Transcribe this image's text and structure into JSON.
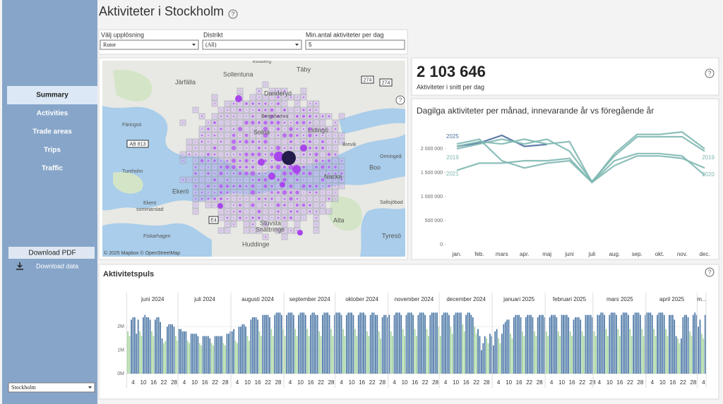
{
  "sidebar": {
    "nav": [
      "Summary",
      "Activities",
      "Trade areas",
      "Trips",
      "Traffic"
    ],
    "download_pdf": "Download PDF",
    "download_data": "Download data",
    "region": "Stockholm"
  },
  "header": {
    "title": "Aktiviteter i Stockholm",
    "help": "?"
  },
  "filters": [
    {
      "label": "Välj upplösning",
      "value": "Rutor"
    },
    {
      "label": "Distrikt",
      "value": "(All)"
    },
    {
      "label": "Min.antal aktiviteter per dag",
      "value": "5"
    }
  ],
  "map": {
    "places": [
      "Edsberg",
      "Sollentuna",
      "Täby",
      "Järfälla",
      "Danderyd",
      "Bergshamra",
      "Solna",
      "Lidingö",
      "Brevik",
      "Färingsö",
      "Ormingeå",
      "Boo",
      "Tureholm",
      "Nacka",
      "Ekerö",
      "Ekerö",
      "sommarstad",
      "Saltsjöbad",
      "Stuvsta",
      "Snättringe",
      "Alta",
      "Tyresö",
      "Fiskarhagen",
      "Huddinge"
    ],
    "roads": [
      "AB 813",
      "E4",
      "274",
      "274"
    ],
    "attribution": "© 2025 Mapbox © OpenStreetMap"
  },
  "kpi": {
    "value": "2 103 646",
    "label": "Aktiviteter i snitt per dag"
  },
  "chart_data": [
    {
      "type": "line",
      "title": "Dagilga aktiviteter per månad, innevarande år vs föregående år",
      "categories": [
        "jan.",
        "feb.",
        "mars",
        "apr.",
        "maj",
        "juni",
        "juli",
        "aug.",
        "sep.",
        "okt.",
        "nov.",
        "dec."
      ],
      "ylim": [
        0,
        2500000
      ],
      "yticks": [
        0,
        {
          "value": 500000,
          "label": "500 000"
        },
        {
          "value": 1000000,
          "label": "1 000 000"
        },
        {
          "value": 1500000,
          "label": "1 500 000"
        },
        {
          "value": 2000000,
          "label": "2 000 000"
        }
      ],
      "series": [
        {
          "name": "2025",
          "color": "#4e6e9e",
          "values": [
            2050000,
            2120000,
            2280000,
            2050000,
            2090000,
            null,
            null,
            null,
            null,
            null,
            null,
            null
          ]
        },
        {
          "name": "2019",
          "color": "#7fb8b2",
          "values": [
            2050000,
            2150000,
            2100000,
            2200000,
            2100000,
            2150000,
            1300000,
            1900000,
            2300000,
            2300000,
            2350000,
            2000000
          ]
        },
        {
          "name": "2020",
          "color": "#7fb8b2",
          "values": [
            2100000,
            2200000,
            1750000,
            1600000,
            1700000,
            1750000,
            1300000,
            1750000,
            1900000,
            1900000,
            1850000,
            1450000
          ]
        },
        {
          "name": "2021",
          "color": "#7fb8b2",
          "values": [
            1550000,
            1700000,
            1700000,
            1750000,
            1750000,
            1800000,
            1300000,
            1650000,
            1850000,
            1850000,
            1800000,
            1600000
          ]
        },
        {
          "color": "#7fb8b2",
          "values": [
            2000000,
            2100000,
            2200000,
            2100000,
            2200000,
            1950000,
            1320000,
            1850000,
            2250000,
            2250000,
            2250000,
            1950000
          ]
        }
      ]
    },
    {
      "type": "bar",
      "title": "Aktivitetspuls",
      "ylim": [
        0,
        2.7
      ],
      "yticks": [
        {
          "value": 0,
          "label": "0M"
        },
        {
          "value": 1,
          "label": "1M"
        },
        {
          "value": 2,
          "label": "2M"
        }
      ],
      "color": "#4e79a7",
      "weekend_color": "#a3d39c",
      "months": [
        {
          "label": "juni 2024",
          "days": [
            4,
            10,
            16,
            22,
            28
          ],
          "weekends": [
            1,
            2,
            8,
            9,
            15,
            16,
            22,
            23,
            29,
            30
          ],
          "values": [
            1.8,
            1.6,
            2.3,
            2.4,
            2.4,
            1.7,
            2.3,
            1.8,
            1.6,
            2.4,
            2.5,
            2.4,
            2.4,
            2.3,
            1.8,
            1.6,
            2.3,
            2.4,
            2.4,
            2.2,
            1.5,
            1.3,
            1.4,
            2.0,
            2.1,
            2.1,
            2.1,
            2.0,
            1.6,
            1.4
          ]
        },
        {
          "label": "juli 2024",
          "days": [
            4,
            10,
            16,
            22,
            28
          ],
          "weekends": [
            6,
            7,
            13,
            14,
            20,
            21,
            27,
            28
          ],
          "values": [
            1.9,
            1.9,
            1.8,
            1.8,
            1.8,
            1.4,
            1.3,
            1.7,
            1.7,
            1.7,
            1.7,
            1.6,
            1.3,
            1.2,
            1.6,
            1.6,
            1.6,
            1.6,
            1.5,
            1.3,
            1.2,
            1.6,
            1.6,
            1.6,
            1.6,
            1.6,
            1.3,
            1.2,
            1.7,
            1.7,
            1.8
          ]
        },
        {
          "label": "augusti 2024",
          "days": [
            4,
            10,
            16,
            22,
            28
          ],
          "weekends": [
            3,
            4,
            10,
            11,
            17,
            18,
            24,
            25,
            31
          ],
          "values": [
            1.8,
            1.9,
            1.4,
            1.3,
            2.0,
            2.0,
            2.1,
            2.1,
            2.0,
            1.6,
            1.4,
            2.3,
            2.4,
            2.4,
            2.4,
            2.3,
            1.8,
            1.6,
            2.5,
            2.5,
            2.5,
            2.5,
            2.4,
            1.9,
            1.6,
            2.5,
            2.6,
            2.6,
            2.6,
            2.5,
            1.9
          ]
        },
        {
          "label": "september 2024",
          "days": [
            4,
            10,
            16,
            22,
            28
          ],
          "weekends": [
            1,
            7,
            8,
            14,
            15,
            21,
            22,
            28,
            29
          ],
          "values": [
            1.6,
            2.5,
            2.6,
            2.6,
            2.6,
            2.5,
            1.9,
            1.6,
            2.5,
            2.6,
            2.6,
            2.6,
            2.5,
            1.9,
            1.6,
            2.5,
            2.6,
            2.6,
            2.5,
            2.5,
            1.8,
            1.6,
            2.5,
            2.6,
            2.6,
            2.6,
            2.5,
            1.9,
            1.6,
            2.5
          ]
        },
        {
          "label": "oktober 2024",
          "days": [
            4,
            10,
            16,
            22,
            28
          ],
          "weekends": [
            5,
            6,
            12,
            13,
            19,
            20,
            26,
            27
          ],
          "values": [
            2.6,
            2.6,
            2.6,
            2.5,
            1.9,
            1.6,
            2.5,
            2.6,
            2.6,
            2.6,
            2.5,
            1.9,
            1.6,
            2.5,
            2.6,
            2.6,
            2.6,
            2.5,
            1.8,
            1.6,
            2.5,
            2.6,
            2.6,
            2.5,
            2.5,
            1.8,
            1.5,
            2.4,
            2.5,
            2.5,
            2.4
          ]
        },
        {
          "label": "november 2024",
          "days": [
            4,
            10,
            16,
            22,
            28
          ],
          "weekends": [
            2,
            3,
            9,
            10,
            16,
            17,
            23,
            24,
            30
          ],
          "values": [
            2.5,
            1.8,
            1.6,
            2.5,
            2.6,
            2.6,
            2.6,
            2.5,
            1.9,
            1.6,
            2.5,
            2.6,
            2.6,
            2.6,
            2.5,
            1.9,
            1.6,
            2.5,
            2.6,
            2.6,
            2.6,
            2.5,
            1.9,
            1.6,
            2.5,
            2.6,
            2.6,
            2.6,
            2.6,
            2.0
          ]
        },
        {
          "label": "december 2024",
          "days": [
            4,
            10,
            16,
            22,
            28
          ],
          "weekends": [
            1,
            7,
            8,
            14,
            15,
            21,
            22,
            28,
            29
          ],
          "values": [
            1.6,
            2.5,
            2.6,
            2.6,
            2.6,
            2.5,
            2.0,
            1.7,
            2.5,
            2.6,
            2.6,
            2.6,
            2.6,
            2.1,
            1.8,
            2.5,
            2.6,
            2.6,
            2.5,
            2.4,
            2.0,
            1.7,
            1.9,
            1.6,
            1.0,
            1.3,
            1.6,
            1.5,
            1.3,
            1.7,
            1.6
          ]
        },
        {
          "label": "januari 2025",
          "days": [
            4,
            10,
            16,
            22,
            28
          ],
          "weekends": [
            4,
            5,
            11,
            12,
            18,
            19,
            25,
            26
          ],
          "values": [
            1.2,
            1.8,
            1.9,
            1.5,
            1.3,
            1.7,
            2.1,
            2.2,
            2.3,
            2.3,
            1.7,
            1.5,
            2.4,
            2.5,
            2.5,
            2.5,
            2.4,
            1.8,
            1.6,
            2.4,
            2.5,
            2.5,
            2.5,
            2.4,
            1.8,
            1.6,
            2.4,
            2.5,
            2.5,
            2.5,
            2.4
          ]
        },
        {
          "label": "februari 2025",
          "days": [
            4,
            10,
            16,
            22,
            28
          ],
          "weekends": [
            1,
            2,
            8,
            9,
            15,
            16,
            22,
            23
          ],
          "values": [
            1.8,
            1.6,
            2.4,
            2.5,
            2.5,
            2.5,
            2.4,
            1.8,
            1.6,
            2.5,
            2.5,
            2.5,
            2.5,
            2.4,
            1.8,
            1.6,
            2.3,
            2.4,
            2.4,
            2.4,
            2.3,
            1.8,
            1.6,
            2.5,
            2.5,
            2.5,
            2.5,
            2.4
          ]
        },
        {
          "label": "mars 2025",
          "days": [
            4,
            10,
            16,
            22,
            28
          ],
          "weekends": [
            1,
            2,
            8,
            9,
            15,
            16,
            22,
            23,
            29,
            30
          ],
          "values": [
            1.8,
            1.6,
            2.5,
            2.5,
            2.6,
            2.6,
            2.5,
            1.9,
            1.6,
            2.5,
            2.6,
            2.6,
            2.6,
            2.5,
            1.9,
            1.6,
            2.5,
            2.6,
            2.6,
            2.6,
            2.5,
            1.9,
            1.6,
            2.5,
            2.6,
            2.6,
            2.6,
            2.5,
            1.9,
            1.6,
            2.5
          ]
        },
        {
          "label": "april 2025",
          "days": [
            4,
            10,
            16,
            22,
            28
          ],
          "weekends": [
            5,
            6,
            12,
            13,
            19,
            20,
            26,
            27
          ],
          "values": [
            2.6,
            2.6,
            2.6,
            2.5,
            1.9,
            1.6,
            2.5,
            2.6,
            2.6,
            2.6,
            2.5,
            1.9,
            1.6,
            2.5,
            2.5,
            2.5,
            2.3,
            1.6,
            1.5,
            1.3,
            1.5,
            2.4,
            2.5,
            2.5,
            2.4,
            1.8,
            1.6,
            2.5,
            2.6,
            2.5
          ]
        },
        {
          "label": "m...",
          "days": [
            4
          ],
          "weekends": [
            3,
            4
          ],
          "values": [
            2.0,
            2.3,
            1.7,
            1.5,
            2.5
          ]
        }
      ]
    }
  ]
}
